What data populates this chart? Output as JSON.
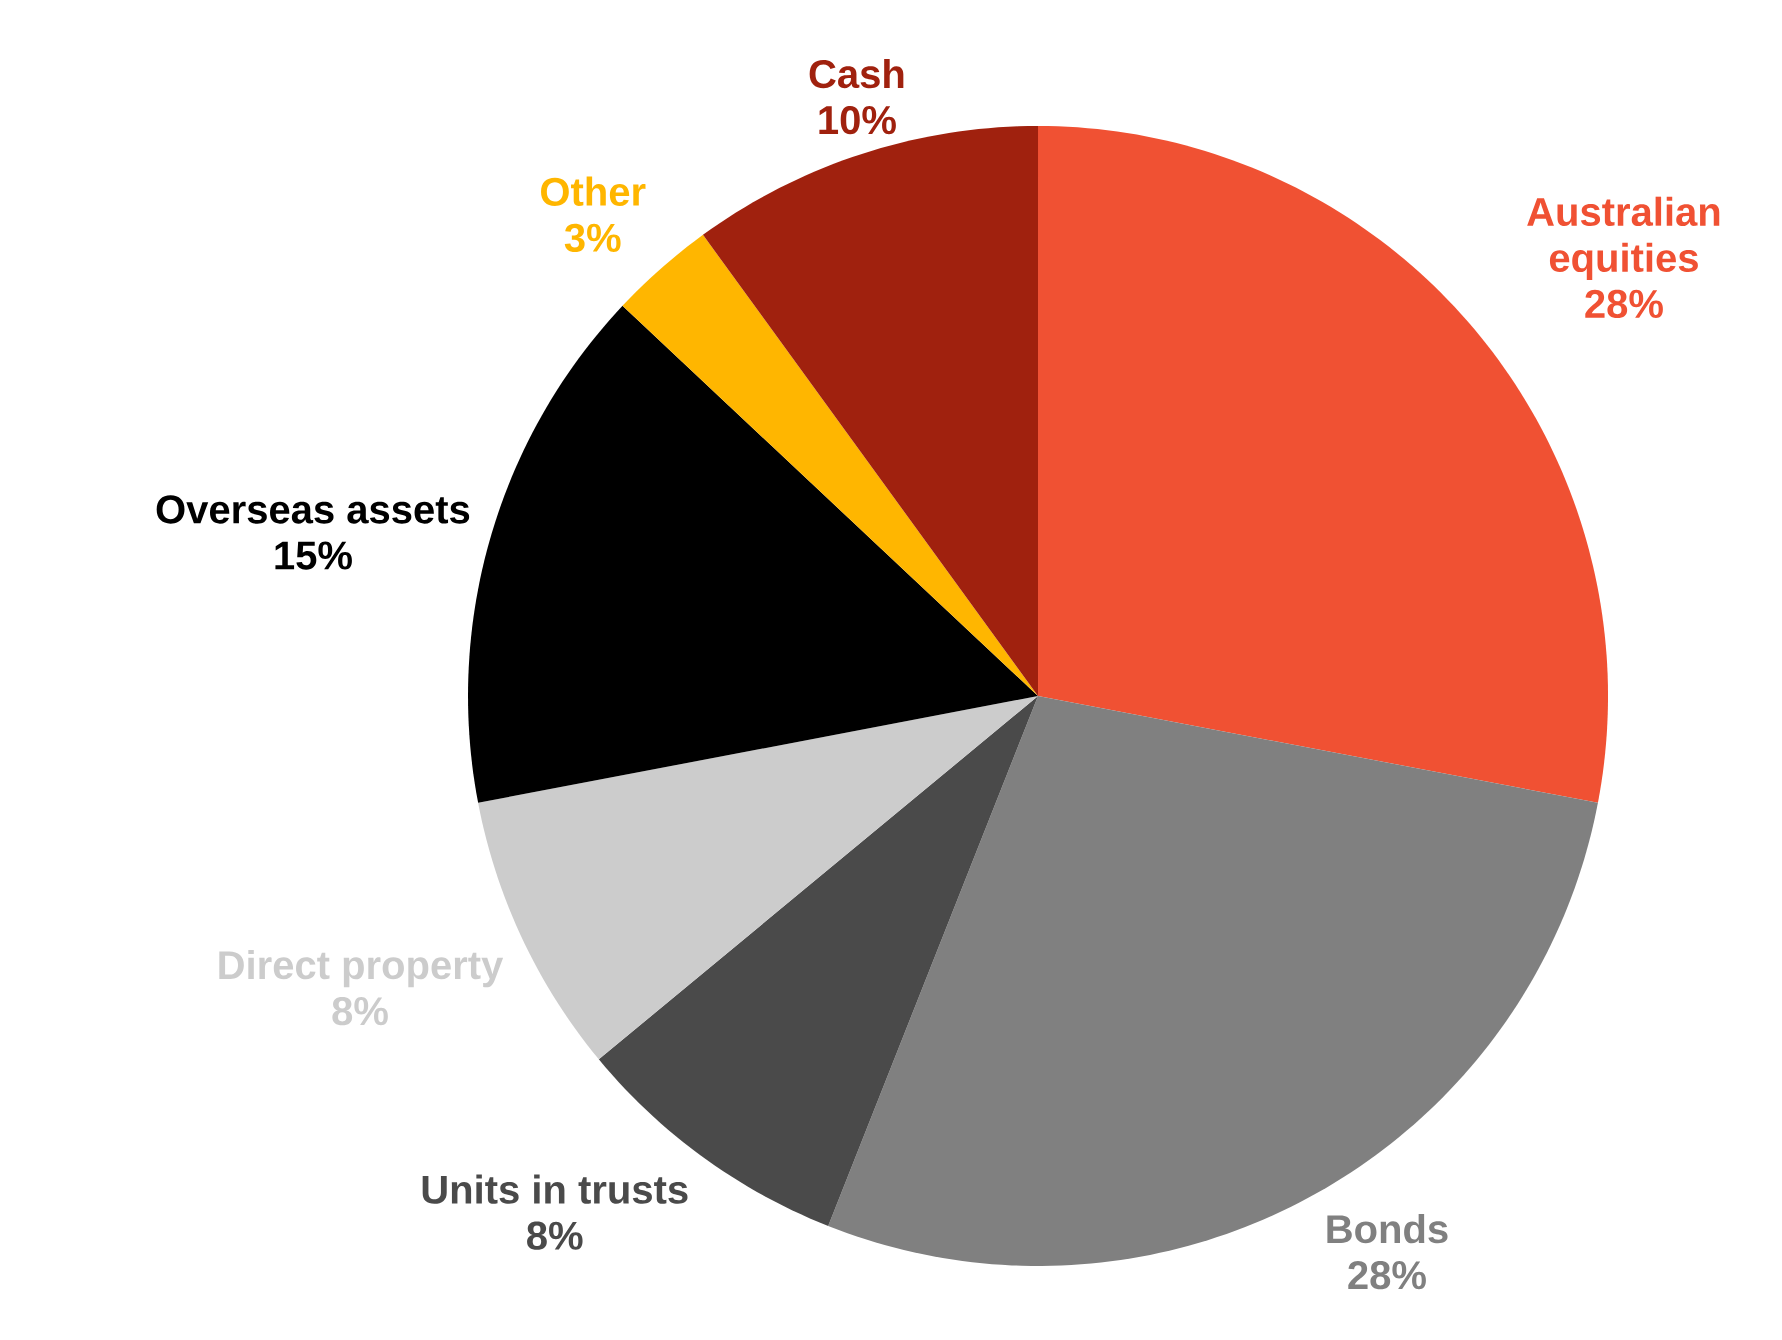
{
  "chart_data": {
    "type": "pie",
    "categories": [
      "Australian equities",
      "Bonds",
      "Units in trusts",
      "Direct property",
      "Overseas assets",
      "Other",
      "Cash"
    ],
    "values": [
      28,
      28,
      8,
      8,
      15,
      3,
      10
    ],
    "value_labels": [
      "28%",
      "28%",
      "8%",
      "8%",
      "15%",
      "3%",
      "10%"
    ],
    "colors": [
      "#f05133",
      "#808080",
      "#4a4a4a",
      "#cccccc",
      "#000000",
      "#ffb600",
      "#a0210e"
    ]
  }
}
